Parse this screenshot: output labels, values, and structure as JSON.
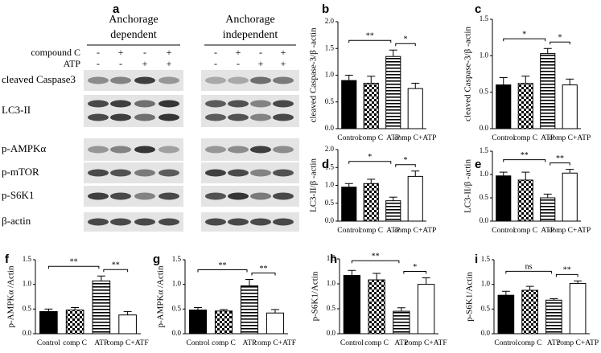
{
  "blot": {
    "label": "a",
    "groups": [
      [
        "Anchorage",
        "dependent"
      ],
      [
        "Anchorage",
        "independent"
      ]
    ],
    "treatments": [
      {
        "name": "compound C",
        "signs": [
          "-",
          "+",
          "-",
          "+",
          "-",
          "+",
          "-",
          "+"
        ]
      },
      {
        "name": "ATP",
        "signs": [
          "-",
          "-",
          "+",
          "+",
          "-",
          "-",
          "+",
          "+"
        ]
      }
    ],
    "proteins": [
      "cleaved Caspase3",
      "LC3-II",
      "p-AMPKα",
      "p-mTOR",
      "p-S6K1",
      "β-actin"
    ]
  },
  "chart_data": [
    {
      "type": "bar",
      "label": "b",
      "ylabel": "cleaved Caspase-3/β -actin",
      "categories": [
        "Control",
        "comp C",
        "ATP",
        "comp C+ATP"
      ],
      "values": [
        0.9,
        0.85,
        1.35,
        0.75
      ],
      "errors": [
        0.1,
        0.13,
        0.12,
        0.1
      ],
      "ylim": [
        0,
        2
      ],
      "yticks": [
        {
          "value": 0,
          "label": "0.0"
        },
        0.5,
        {
          "value": 1,
          "label": "1.0"
        },
        1.5,
        {
          "value": 2,
          "label": "2.0"
        }
      ],
      "annotations": [
        "**",
        "*"
      ],
      "colors": [
        "#000000",
        "#ffffff",
        "#ffffff",
        "#ffffff"
      ],
      "patterns": [
        "solid",
        "checker",
        "stripes",
        "solid"
      ]
    },
    {
      "type": "bar",
      "label": "c",
      "ylabel": "cleaved Caspase-3/β -actin",
      "categories": [
        "Control",
        "comp C",
        "ATP",
        "comp C+ATP"
      ],
      "values": [
        0.6,
        0.62,
        1.03,
        0.6
      ],
      "errors": [
        0.1,
        0.1,
        0.07,
        0.08
      ],
      "ylim": [
        0,
        1.5
      ],
      "yticks": [
        {
          "value": 0,
          "label": "0.0"
        },
        0.5,
        {
          "value": 1,
          "label": "1.0"
        },
        1.5
      ],
      "annotations": [
        "*",
        "*"
      ],
      "colors": [
        "#000000",
        "#ffffff",
        "#ffffff",
        "#ffffff"
      ],
      "patterns": [
        "solid",
        "checker",
        "stripes",
        "solid"
      ]
    },
    {
      "type": "bar",
      "label": "d",
      "ylabel": "LC3-II/β -actin",
      "categories": [
        "Control",
        "comp C",
        "ATP",
        "comp C+ATP"
      ],
      "values": [
        0.95,
        1.05,
        0.57,
        1.25
      ],
      "errors": [
        0.1,
        0.12,
        0.1,
        0.15
      ],
      "ylim": [
        0,
        2
      ],
      "yticks": [
        {
          "value": 0,
          "label": "0.0"
        },
        0.5,
        {
          "value": 1,
          "label": "1.0"
        },
        1.5,
        {
          "value": 2,
          "label": "2.0"
        }
      ],
      "annotations": [
        "*",
        "*"
      ],
      "colors": [
        "#000000",
        "#ffffff",
        "#ffffff",
        "#ffffff"
      ],
      "patterns": [
        "solid",
        "checker",
        "stripes",
        "solid"
      ]
    },
    {
      "type": "bar",
      "label": "e",
      "ylabel": "LC3-II/β -actin",
      "categories": [
        "Control",
        "comp C",
        "ATP",
        "comp C+ATP"
      ],
      "values": [
        0.97,
        0.88,
        0.5,
        1.03
      ],
      "errors": [
        0.08,
        0.17,
        0.08,
        0.08
      ],
      "ylim": [
        0,
        1.5
      ],
      "yticks": [
        {
          "value": 0,
          "label": "0.0"
        },
        0.5,
        {
          "value": 1,
          "label": "1.0"
        },
        1.5
      ],
      "annotations": [
        "**",
        "**"
      ],
      "colors": [
        "#000000",
        "#ffffff",
        "#ffffff",
        "#ffffff"
      ],
      "patterns": [
        "solid",
        "checker",
        "stripes",
        "solid"
      ]
    },
    {
      "type": "bar",
      "label": "f",
      "ylabel": "p-AMPKα /Actin",
      "categories": [
        "Control",
        "comp C",
        "ATP",
        "comp C+ATF"
      ],
      "values": [
        0.45,
        0.48,
        1.07,
        0.38
      ],
      "errors": [
        0.05,
        0.05,
        0.1,
        0.07
      ],
      "ylim": [
        0,
        1.5
      ],
      "yticks": [
        {
          "value": 0,
          "label": "0.0"
        },
        0.5,
        {
          "value": 1,
          "label": "1.0"
        },
        1.5
      ],
      "annotations": [
        "**",
        "**"
      ],
      "colors": [
        "#000000",
        "#ffffff",
        "#ffffff",
        "#ffffff"
      ],
      "patterns": [
        "solid",
        "checker",
        "stripes",
        "solid"
      ]
    },
    {
      "type": "bar",
      "label": "g",
      "ylabel": "p-AMPKα /Actin",
      "categories": [
        "Control",
        "comp C",
        "ATP",
        "comp C+ATF"
      ],
      "values": [
        0.48,
        0.46,
        0.97,
        0.42
      ],
      "errors": [
        0.05,
        0.03,
        0.13,
        0.07
      ],
      "ylim": [
        0,
        1.5
      ],
      "yticks": [
        {
          "value": 0,
          "label": "0.0"
        },
        0.5,
        {
          "value": 1,
          "label": "1.0"
        },
        1.5
      ],
      "annotations": [
        "**",
        "**"
      ],
      "colors": [
        "#000000",
        "#ffffff",
        "#ffffff",
        "#ffffff"
      ],
      "patterns": [
        "solid",
        "checker",
        "stripes",
        "solid"
      ]
    },
    {
      "type": "bar",
      "label": "h",
      "ylabel": "p-S6K1/Actin",
      "categories": [
        "Control",
        "comp C",
        "ATP",
        "comp C+ATF"
      ],
      "values": [
        1.17,
        1.08,
        0.45,
        0.99
      ],
      "errors": [
        0.1,
        0.13,
        0.07,
        0.13
      ],
      "ylim": [
        0,
        1.5
      ],
      "yticks": [
        {
          "value": 0,
          "label": "0.0"
        },
        0.5,
        {
          "value": 1,
          "label": "1.0"
        },
        1.5
      ],
      "annotations": [
        "**",
        "*"
      ],
      "colors": [
        "#000000",
        "#ffffff",
        "#ffffff",
        "#ffffff"
      ],
      "patterns": [
        "solid",
        "checker",
        "stripes",
        "solid"
      ]
    },
    {
      "type": "bar",
      "label": "i",
      "ylabel": "p-S6K1/Actin",
      "categories": [
        "Control",
        "comp C",
        "ATP",
        "comp C+ATP"
      ],
      "values": [
        0.78,
        0.88,
        0.68,
        1.02
      ],
      "errors": [
        0.08,
        0.08,
        0.03,
        0.05
      ],
      "ylim": [
        0,
        1.5
      ],
      "yticks": [
        {
          "value": 0,
          "label": "0.0"
        },
        0.5,
        {
          "value": 1,
          "label": "1.0"
        },
        1.5
      ],
      "annotations": [
        "ns",
        "**"
      ],
      "colors": [
        "#000000",
        "#ffffff",
        "#ffffff",
        "#ffffff"
      ],
      "patterns": [
        "solid",
        "checker",
        "stripes",
        "solid"
      ]
    }
  ]
}
